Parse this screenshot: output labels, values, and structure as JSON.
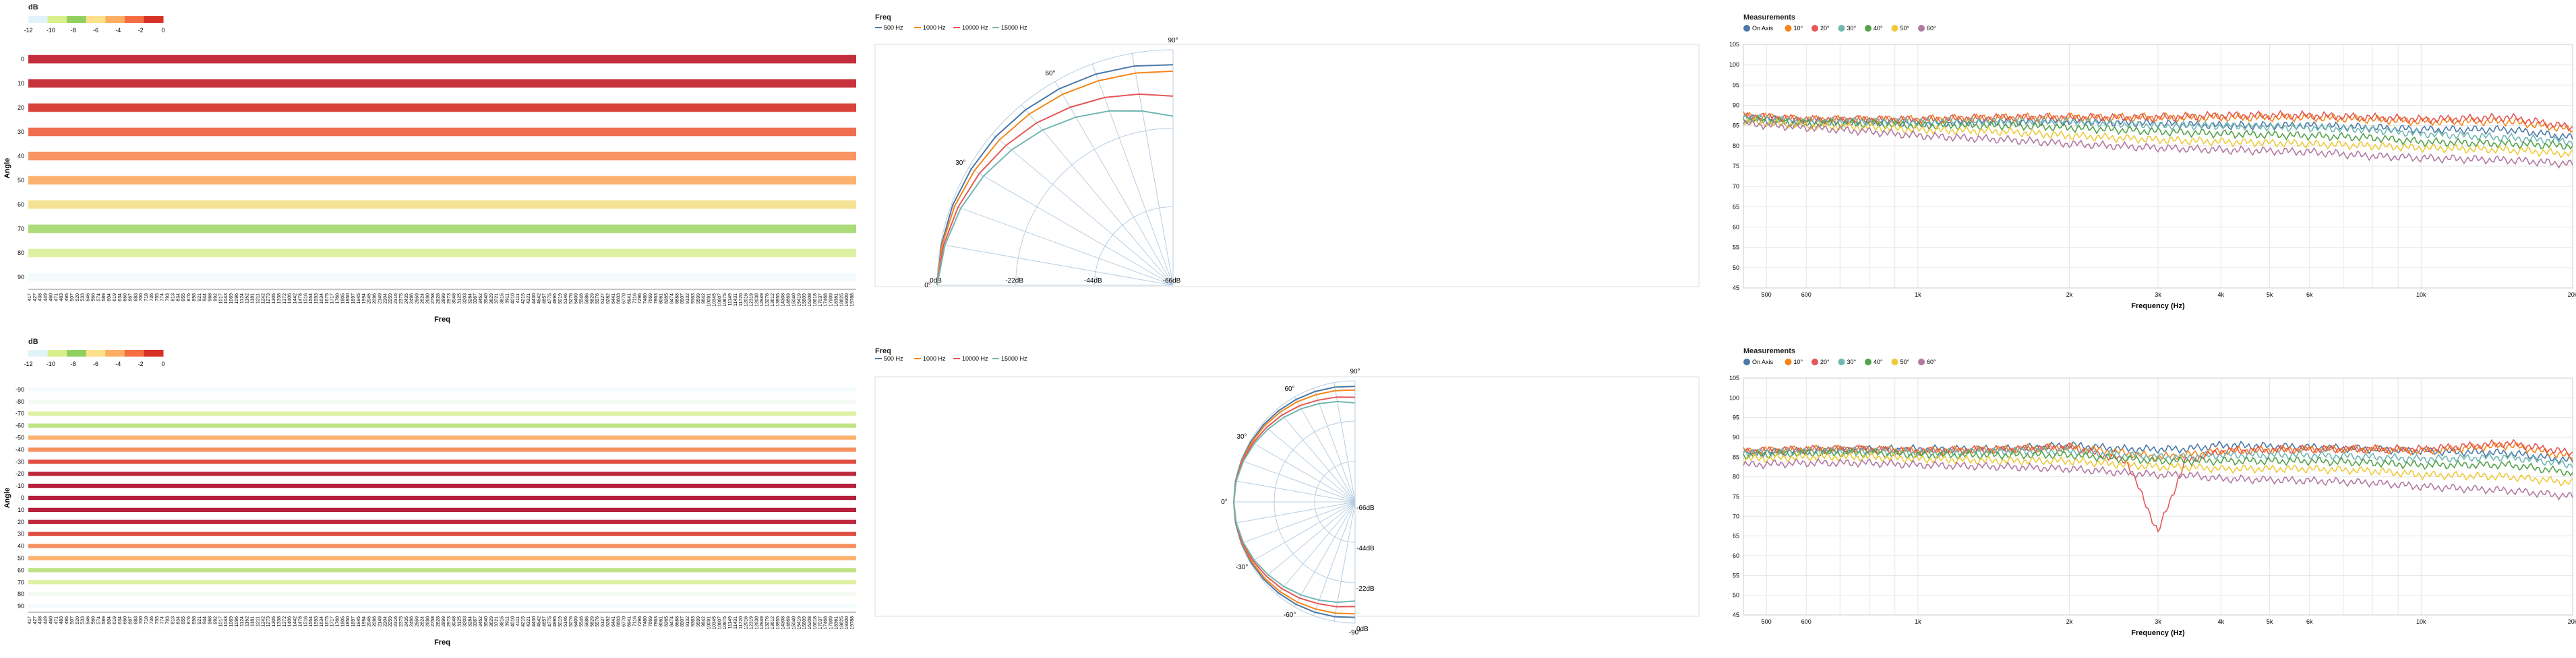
{
  "colors": {
    "heat_scale": [
      "#4575b4",
      "#e0f3f8",
      "#d9ef8b",
      "#91cf60",
      "#fee08b",
      "#fdae61",
      "#f46d43",
      "#d73027",
      "#a50026"
    ],
    "freq_series": [
      "#4c78a8",
      "#f58518",
      "#e45756",
      "#72b7b2"
    ],
    "meas_series": [
      "#4c78a8",
      "#f58518",
      "#e45756",
      "#72b7b2",
      "#54a24b",
      "#eeca3b",
      "#b279a2"
    ]
  },
  "top": {
    "heatmap": {
      "legend_title": "dB",
      "legend_ticks": [
        "-12",
        "-10",
        "-8",
        "-6",
        "-4",
        "-2",
        "0"
      ],
      "xlabel": "Freq",
      "ylabel": "Angle"
    },
    "polar": {
      "legend_title": "Freq"
    },
    "meas": {
      "legend_title": "Measurements",
      "xlabel": "Frequency (Hz)",
      "ylabel": "dB"
    }
  },
  "bottom": {
    "heatmap": {
      "legend_title": "dB",
      "legend_ticks": [
        "-12",
        "-10",
        "-8",
        "-6",
        "-4",
        "-2",
        "0"
      ],
      "xlabel": "Freq",
      "ylabel": "Angle"
    },
    "polar": {
      "legend_title": "Freq"
    },
    "meas": {
      "legend_title": "Measurements",
      "xlabel": "Frequency (Hz)",
      "ylabel": "dB"
    }
  },
  "chart_data": [
    {
      "type": "heatmap",
      "xlabel": "Freq",
      "ylabel": "Angle",
      "x_ticks": [
        "417",
        "427",
        "438",
        "449",
        "460",
        "471",
        "483",
        "495",
        "507",
        "520",
        "533",
        "546",
        "560",
        "574",
        "589",
        "604",
        "619",
        "634",
        "650",
        "667",
        "683",
        "700",
        "718",
        "736",
        "755",
        "774",
        "793",
        "813",
        "834",
        "855",
        "876",
        "898",
        "921",
        "944",
        "968",
        "992",
        "1017",
        "1043",
        "1069",
        "1096",
        "1124",
        "1152",
        "1181",
        "1211",
        "1242",
        "1273",
        "1305",
        "1338",
        "1372",
        "1406",
        "1442",
        "1478",
        "1516",
        "1554",
        "1593",
        "1634",
        "1675",
        "1717",
        "1760",
        "1805",
        "1850",
        "1897",
        "1945",
        "1994",
        "2045",
        "2096",
        "2149",
        "2204",
        "2259",
        "2316",
        "2375",
        "2435",
        "2496",
        "2559",
        "2624",
        "2690",
        "2758",
        "2828",
        "2899",
        "2973",
        "3048",
        "3125",
        "3203",
        "3284",
        "3367",
        "3452",
        "3540",
        "3629",
        "3721",
        "3815",
        "3911",
        "4010",
        "4111",
        "4215",
        "4321",
        "4430",
        "4542",
        "4657",
        "4775",
        "4895",
        "5019",
        "5146",
        "5276",
        "5409",
        "5546",
        "5686",
        "5829",
        "5976",
        "6127",
        "6282",
        "6441",
        "6603",
        "6770",
        "6941",
        "7116",
        "7296",
        "7480",
        "7669",
        "7863",
        "8061",
        "8265",
        "8474",
        "8688",
        "8907",
        "9132",
        "9363",
        "9599",
        "9842",
        "10091",
        "10345",
        "10607",
        "10875",
        "11149",
        "11431",
        "11720",
        "12016",
        "12319",
        "12630",
        "12949",
        "13276",
        "13612",
        "13955",
        "14308",
        "14669",
        "15040",
        "15419",
        "15809",
        "16208",
        "16618",
        "17037",
        "17468",
        "17909",
        "18361",
        "18825",
        "19300",
        "19788"
      ],
      "y_ticks": [
        "0",
        "10",
        "20",
        "30",
        "40",
        "50",
        "60",
        "70",
        "80",
        "90"
      ],
      "row_levels": [
        -0.8,
        -1.0,
        -1.6,
        -3.0,
        -4.2,
        -5.0,
        -7.0,
        -9.0,
        -10.5,
        -12.5
      ],
      "color_domain": [
        -12,
        0
      ]
    },
    {
      "type": "line",
      "polar": true,
      "legend": [
        "500 Hz",
        "1000 Hz",
        "10000 Hz",
        "15000 Hz"
      ],
      "radial_ticks": [
        "0dB",
        "-22dB",
        "-44dB",
        "-66dB"
      ],
      "angle_ticks": [
        "0°",
        "30°",
        "60°",
        "90°"
      ],
      "angles": [
        0,
        10,
        20,
        30,
        40,
        50,
        60,
        70,
        80,
        90
      ],
      "series": [
        {
          "name": "500 Hz",
          "values": [
            0,
            -0.2,
            -0.4,
            -0.8,
            -1.2,
            -1.8,
            -2.4,
            -3.0,
            -3.6,
            -4.2
          ]
        },
        {
          "name": "1000 Hz",
          "values": [
            0,
            -0.4,
            -1.0,
            -1.8,
            -2.6,
            -3.4,
            -4.2,
            -5.0,
            -5.6,
            -6.0
          ]
        },
        {
          "name": "10000 Hz",
          "values": [
            0,
            -0.8,
            -2.0,
            -3.4,
            -5.0,
            -6.6,
            -8.4,
            -10.0,
            -11.6,
            -13.0
          ]
        },
        {
          "name": "15000 Hz",
          "values": [
            0,
            -1.2,
            -2.8,
            -4.8,
            -7.0,
            -9.2,
            -11.6,
            -14.0,
            -16.4,
            -18.6
          ]
        }
      ]
    },
    {
      "type": "line",
      "xlabel": "Frequency (Hz)",
      "ylabel": "dB",
      "x_scale": "log",
      "xlim": [
        450,
        20000
      ],
      "ylim": [
        45,
        105
      ],
      "x_ticks": [
        500,
        600,
        1000,
        2000,
        3000,
        4000,
        5000,
        6000,
        10000,
        20000
      ],
      "x_tick_labels": [
        "500",
        "600",
        "1k",
        "2k",
        "3k",
        "4k",
        "5k",
        "6k",
        "10k",
        "20k"
      ],
      "y_ticks": [
        45,
        50,
        55,
        60,
        65,
        70,
        75,
        80,
        85,
        90,
        95,
        100,
        105
      ],
      "legend": [
        "On Axis",
        "10°",
        "20°",
        "30°",
        "40°",
        "50°",
        "60°"
      ],
      "series": [
        {
          "name": "On Axis",
          "x": [
            450,
            600,
            800,
            1000,
            1500,
            2000,
            3000,
            4000,
            6000,
            8000,
            10000,
            15000,
            20000
          ],
          "values": [
            87,
            86,
            86,
            85.5,
            86,
            86,
            85.5,
            85,
            85,
            84.5,
            84,
            84,
            82
          ]
        },
        {
          "name": "10°",
          "x": [
            450,
            600,
            800,
            1000,
            1500,
            2000,
            3000,
            4000,
            6000,
            8000,
            10000,
            15000,
            20000
          ],
          "values": [
            87.5,
            86.5,
            86.5,
            86.5,
            87,
            87,
            87,
            87,
            87,
            86.5,
            86,
            86,
            84
          ]
        },
        {
          "name": "20°",
          "x": [
            450,
            600,
            800,
            1000,
            1500,
            2000,
            3000,
            4000,
            6000,
            8000,
            10000,
            15000,
            20000
          ],
          "values": [
            87.5,
            86.5,
            86.5,
            86.5,
            87,
            87,
            87,
            87.5,
            87.5,
            87,
            86.5,
            87,
            84.5
          ]
        },
        {
          "name": "30°",
          "x": [
            450,
            600,
            800,
            1000,
            1500,
            2000,
            3000,
            4000,
            6000,
            8000,
            10000,
            15000,
            20000
          ],
          "values": [
            87,
            86,
            86,
            86,
            86,
            86,
            85,
            85,
            84.5,
            84,
            83,
            82,
            81
          ]
        },
        {
          "name": "40°",
          "x": [
            450,
            600,
            800,
            1000,
            1500,
            2000,
            3000,
            4000,
            6000,
            8000,
            10000,
            15000,
            20000
          ],
          "values": [
            86.5,
            85.5,
            85.5,
            85,
            85,
            84.5,
            83.5,
            83,
            82.5,
            82,
            81,
            80.5,
            80
          ]
        },
        {
          "name": "50°",
          "x": [
            450,
            600,
            800,
            1000,
            1500,
            2000,
            3000,
            4000,
            6000,
            8000,
            10000,
            15000,
            20000
          ],
          "values": [
            86,
            85,
            84.5,
            84,
            83.5,
            82.5,
            81.5,
            81,
            80.5,
            80,
            79.5,
            79,
            78
          ]
        },
        {
          "name": "60°",
          "x": [
            450,
            600,
            800,
            1000,
            1500,
            2000,
            3000,
            4000,
            6000,
            8000,
            10000,
            15000,
            20000
          ],
          "values": [
            85.5,
            84.5,
            83.5,
            82.5,
            81.5,
            80.5,
            79.5,
            79,
            78.5,
            77.5,
            77,
            76.5,
            75.5
          ]
        }
      ]
    },
    {
      "type": "heatmap",
      "xlabel": "Freq",
      "ylabel": "Angle",
      "y_ticks": [
        "-90",
        "-80",
        "-70",
        "-60",
        "-50",
        "-40",
        "-30",
        "-20",
        "-10",
        "0",
        "10",
        "20",
        "30",
        "40",
        "50",
        "60",
        "70",
        "80",
        "90"
      ],
      "row_levels": [
        -12.5,
        -11.5,
        -10.5,
        -9.5,
        -5.0,
        -4.0,
        -2.0,
        -0.6,
        -0.3,
        -0.2,
        -0.3,
        -0.6,
        -2.0,
        -4.0,
        -5.0,
        -9.5,
        -10.5,
        -11.5,
        -12.5
      ],
      "color_domain": [
        -12,
        0
      ]
    },
    {
      "type": "line",
      "polar": true,
      "legend": [
        "500 Hz",
        "1000 Hz",
        "10000 Hz",
        "15000 Hz"
      ],
      "radial_ticks": [
        "0dB",
        "-22dB",
        "-44dB",
        "-66dB"
      ],
      "angle_ticks": [
        "-90°",
        "-60°",
        "-30°",
        "0°",
        "30°",
        "60°",
        "90°"
      ],
      "angles": [
        -90,
        -80,
        -70,
        -60,
        -50,
        -40,
        -30,
        -20,
        -10,
        0,
        10,
        20,
        30,
        40,
        50,
        60,
        70,
        80,
        90
      ],
      "series": [
        {
          "name": "500 Hz",
          "values": [
            -3,
            -2.5,
            -2,
            -1.6,
            -1.2,
            -0.8,
            -0.5,
            -0.2,
            0,
            0,
            0,
            -0.2,
            -0.5,
            -0.8,
            -1.2,
            -1.6,
            -2,
            -2.5,
            -3
          ]
        },
        {
          "name": "1000 Hz",
          "values": [
            -5,
            -4.4,
            -3.8,
            -3,
            -2.3,
            -1.6,
            -1,
            -0.5,
            -0.2,
            0,
            -0.2,
            -0.5,
            -1,
            -1.6,
            -2.3,
            -3,
            -3.8,
            -4.4,
            -5
          ]
        },
        {
          "name": "10000 Hz",
          "values": [
            -9,
            -8,
            -7,
            -5.5,
            -4.2,
            -3,
            -1.8,
            -0.8,
            -0.3,
            0,
            -0.3,
            -0.8,
            -1.8,
            -3,
            -4.2,
            -5.5,
            -7,
            -8,
            -9
          ]
        },
        {
          "name": "15000 Hz",
          "values": [
            -12,
            -10.5,
            -9,
            -7.4,
            -5.8,
            -4.2,
            -2.6,
            -1.3,
            -0.4,
            0,
            -0.4,
            -1.3,
            -2.6,
            -4.2,
            -5.8,
            -7.4,
            -9,
            -10.5,
            -12
          ]
        }
      ]
    },
    {
      "type": "line",
      "xlabel": "Frequency (Hz)",
      "ylabel": "dB",
      "x_scale": "log",
      "xlim": [
        450,
        20000
      ],
      "ylim": [
        45,
        105
      ],
      "x_ticks": [
        500,
        600,
        1000,
        2000,
        3000,
        4000,
        5000,
        6000,
        10000,
        20000
      ],
      "x_tick_labels": [
        "500",
        "600",
        "1k",
        "2k",
        "3k",
        "4k",
        "5k",
        "6k",
        "10k",
        "20k"
      ],
      "y_ticks": [
        45,
        50,
        55,
        60,
        65,
        70,
        75,
        80,
        85,
        90,
        95,
        100,
        105
      ],
      "legend": [
        "On Axis",
        "10°",
        "20°",
        "30°",
        "40°",
        "50°",
        "60°"
      ],
      "series": [
        {
          "name": "On Axis",
          "x": [
            450,
            600,
            800,
            1000,
            1500,
            2000,
            2600,
            3000,
            3400,
            4000,
            6000,
            8000,
            10000,
            15000,
            20000
          ],
          "values": [
            86,
            86.5,
            87,
            87,
            87,
            88,
            87,
            87,
            87,
            88,
            87.5,
            87,
            86.5,
            86,
            84
          ]
        },
        {
          "name": "10°",
          "x": [
            450,
            600,
            800,
            1000,
            1500,
            2000,
            2600,
            3000,
            3400,
            4000,
            6000,
            8000,
            10000,
            15000,
            20000
          ],
          "values": [
            86.5,
            87,
            87,
            86.5,
            87,
            87.5,
            86,
            85,
            85.5,
            86.5,
            87,
            87,
            86.5,
            88,
            85
          ]
        },
        {
          "name": "20°",
          "x": [
            450,
            600,
            800,
            1000,
            1500,
            2000,
            2600,
            3000,
            3400,
            4000,
            6000,
            8000,
            10000,
            15000,
            20000
          ],
          "values": [
            86.5,
            87,
            87,
            86.5,
            87,
            87.5,
            84,
            66,
            84,
            86.5,
            87,
            87,
            87,
            88.5,
            86
          ]
        },
        {
          "name": "30°",
          "x": [
            450,
            600,
            800,
            1000,
            1500,
            2000,
            2600,
            3000,
            3400,
            4000,
            6000,
            8000,
            10000,
            15000,
            20000
          ],
          "values": [
            86,
            86.5,
            86.5,
            86,
            86.5,
            86.5,
            85.5,
            85,
            85,
            85.5,
            85.5,
            85,
            84.5,
            85,
            83
          ]
        },
        {
          "name": "40°",
          "x": [
            450,
            600,
            800,
            1000,
            1500,
            2000,
            2600,
            3000,
            3400,
            4000,
            6000,
            8000,
            10000,
            15000,
            20000
          ],
          "values": [
            85.5,
            86,
            86,
            85.5,
            85.5,
            85.5,
            84.5,
            84,
            84,
            84,
            84,
            83.5,
            83,
            83,
            81
          ]
        },
        {
          "name": "50°",
          "x": [
            450,
            600,
            800,
            1000,
            1500,
            2000,
            2600,
            3000,
            3400,
            4000,
            6000,
            8000,
            10000,
            15000,
            20000
          ],
          "values": [
            84.5,
            85,
            85,
            84.5,
            84,
            84,
            83,
            82.5,
            82.5,
            82,
            82,
            81.5,
            80.5,
            80,
            78.5
          ]
        },
        {
          "name": "60°",
          "x": [
            450,
            600,
            800,
            1000,
            1500,
            2000,
            2600,
            3000,
            3400,
            4000,
            6000,
            8000,
            10000,
            15000,
            20000
          ],
          "values": [
            83,
            83.5,
            83.5,
            83,
            82.5,
            82,
            81,
            80.5,
            80.5,
            79.5,
            79,
            78.5,
            77.5,
            76.5,
            75
          ]
        }
      ]
    }
  ]
}
